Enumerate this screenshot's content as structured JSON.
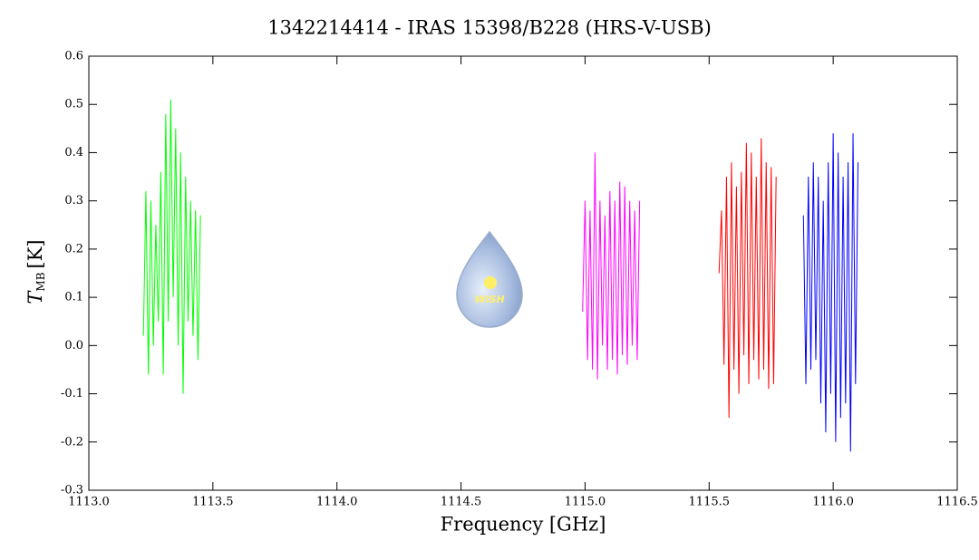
{
  "chart_data": {
    "type": "line",
    "title": "1342214414 - IRAS 15398/B228 (HRS-V-USB)",
    "xlabel": "Frequency [GHz]",
    "ylabel": {
      "symbol": "T",
      "subscript": "MB",
      "unit": "[K]"
    },
    "logo_text": "WISH",
    "xlim": [
      1113.0,
      1116.5
    ],
    "xticks": [
      {
        "value": 1113.0,
        "label": "1113.0"
      },
      {
        "value": 1113.5,
        "label": "1113.5"
      },
      {
        "value": 1114.0,
        "label": "1114.0"
      },
      {
        "value": 1114.5,
        "label": "1114.5"
      },
      {
        "value": 1115.0,
        "label": "1115.0"
      },
      {
        "value": 1115.5,
        "label": "1115.5"
      },
      {
        "value": 1116.0,
        "label": "1116.0"
      },
      {
        "value": 1116.5,
        "label": "1116.5"
      }
    ],
    "ylim": [
      -0.3,
      0.6
    ],
    "yticks": [
      -0.3,
      -0.2,
      -0.1,
      {
        "value": 0,
        "label": "0.0"
      },
      0.1,
      0.2,
      0.3,
      0.4,
      0.5,
      0.6
    ],
    "series": [
      {
        "color": "#00ff00",
        "x": [
          1113.22,
          1113.23,
          1113.24,
          1113.25,
          1113.26,
          1113.27,
          1113.28,
          1113.29,
          1113.3,
          1113.31,
          1113.32,
          1113.33,
          1113.34,
          1113.35,
          1113.36,
          1113.37,
          1113.38,
          1113.39,
          1113.4,
          1113.41,
          1113.42,
          1113.43,
          1113.44,
          1113.45
        ],
        "values": [
          0.02,
          0.32,
          -0.06,
          0.3,
          0.0,
          0.25,
          0.05,
          0.36,
          -0.06,
          0.48,
          0.05,
          0.51,
          0.1,
          0.45,
          0.0,
          0.4,
          -0.1,
          0.35,
          0.05,
          0.3,
          0.02,
          0.28,
          -0.03,
          0.27
        ]
      },
      {
        "color": "#ff00ff",
        "x": [
          1114.99,
          1115.0,
          1115.01,
          1115.02,
          1115.03,
          1115.04,
          1115.05,
          1115.06,
          1115.07,
          1115.08,
          1115.09,
          1115.1,
          1115.11,
          1115.12,
          1115.13,
          1115.14,
          1115.15,
          1115.16,
          1115.17,
          1115.18,
          1115.19,
          1115.2,
          1115.21,
          1115.22
        ],
        "values": [
          0.07,
          0.3,
          -0.03,
          0.28,
          -0.05,
          0.4,
          -0.07,
          0.3,
          0.0,
          0.27,
          -0.05,
          0.32,
          -0.03,
          0.3,
          -0.06,
          0.34,
          -0.02,
          0.33,
          -0.04,
          0.3,
          0.0,
          0.28,
          -0.03,
          0.3
        ]
      },
      {
        "color": "#ff0000",
        "x": [
          1115.54,
          1115.55,
          1115.56,
          1115.57,
          1115.58,
          1115.59,
          1115.6,
          1115.61,
          1115.62,
          1115.63,
          1115.64,
          1115.65,
          1115.66,
          1115.67,
          1115.68,
          1115.69,
          1115.7,
          1115.71,
          1115.72,
          1115.73,
          1115.74,
          1115.75,
          1115.76,
          1115.77
        ],
        "values": [
          0.15,
          0.28,
          -0.04,
          0.35,
          -0.15,
          0.38,
          -0.05,
          0.33,
          -0.1,
          0.36,
          -0.02,
          0.42,
          -0.08,
          0.4,
          -0.03,
          0.35,
          -0.07,
          0.43,
          -0.05,
          0.38,
          -0.09,
          0.37,
          -0.08,
          0.35
        ]
      },
      {
        "color": "#0000ff",
        "x": [
          1115.88,
          1115.89,
          1115.9,
          1115.91,
          1115.92,
          1115.93,
          1115.94,
          1115.95,
          1115.96,
          1115.97,
          1115.98,
          1115.99,
          1116.0,
          1116.01,
          1116.02,
          1116.03,
          1116.04,
          1116.05,
          1116.06,
          1116.07,
          1116.08,
          1116.09,
          1116.1
        ],
        "values": [
          0.27,
          -0.08,
          0.35,
          -0.05,
          0.38,
          -0.03,
          0.35,
          -0.12,
          0.3,
          -0.18,
          0.38,
          -0.1,
          0.44,
          -0.2,
          0.4,
          -0.15,
          0.35,
          -0.12,
          0.38,
          -0.22,
          0.44,
          -0.08,
          0.38
        ]
      }
    ]
  }
}
